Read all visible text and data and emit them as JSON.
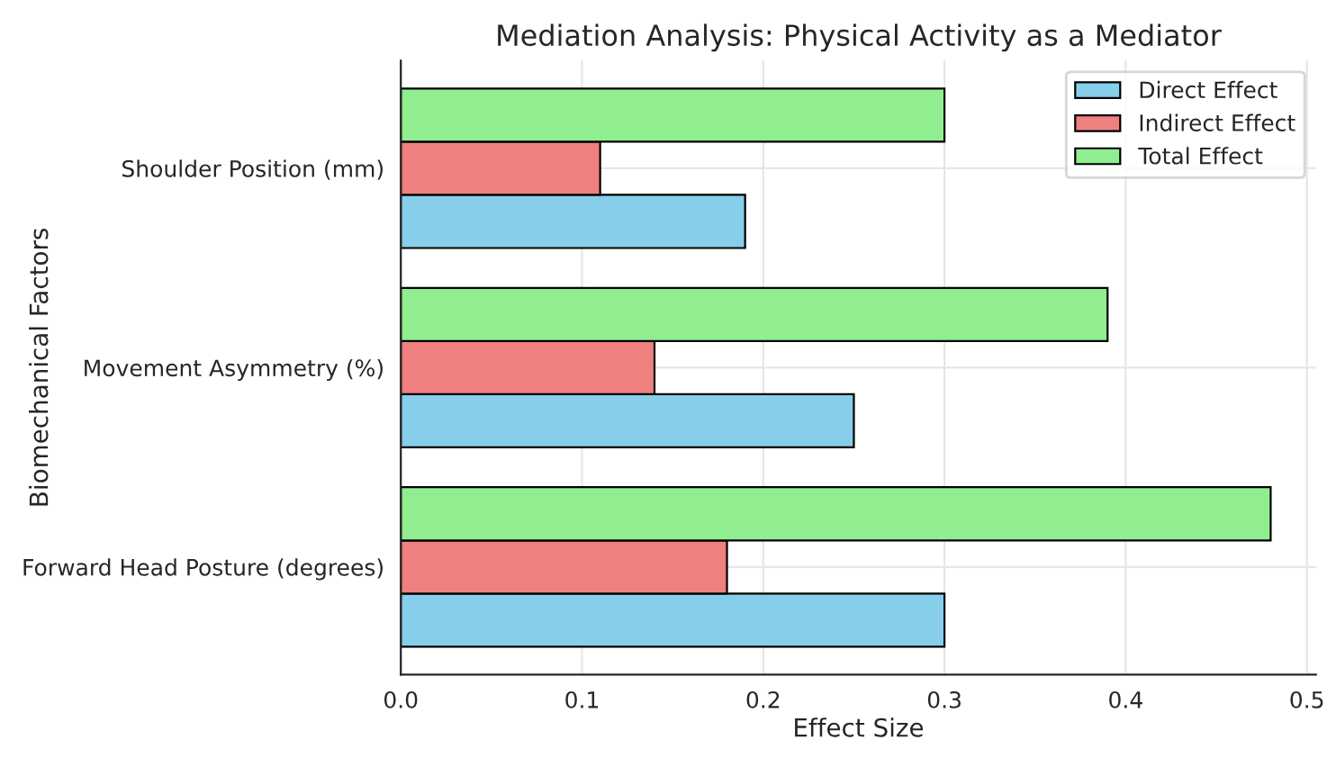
{
  "chart_data": {
    "type": "bar",
    "orientation": "horizontal",
    "title": "Mediation Analysis: Physical Activity as a Mediator",
    "xlabel": "Effect Size",
    "ylabel": "Biomechanical Factors",
    "categories": [
      "Shoulder Position (mm)",
      "Movement Asymmetry (%)",
      "Forward Head Posture (degrees)"
    ],
    "series": [
      {
        "name": "Direct Effect",
        "color": "#87ceeb",
        "values": [
          0.19,
          0.25,
          0.3
        ]
      },
      {
        "name": "Indirect Effect",
        "color": "#f08080",
        "values": [
          0.11,
          0.14,
          0.18
        ]
      },
      {
        "name": "Total Effect",
        "color": "#90ee90",
        "values": [
          0.3,
          0.39,
          0.48
        ]
      }
    ],
    "xlim": [
      0,
      0.505
    ],
    "xticks": [
      {
        "value": 0,
        "label": "0.0"
      },
      {
        "value": 0.1,
        "label": "0.1"
      },
      {
        "value": 0.2,
        "label": "0.2"
      },
      {
        "value": 0.3,
        "label": "0.3"
      },
      {
        "value": 0.4,
        "label": "0.4"
      },
      {
        "value": 0.5,
        "label": "0.5"
      }
    ],
    "grid": true,
    "legend": "top right"
  }
}
